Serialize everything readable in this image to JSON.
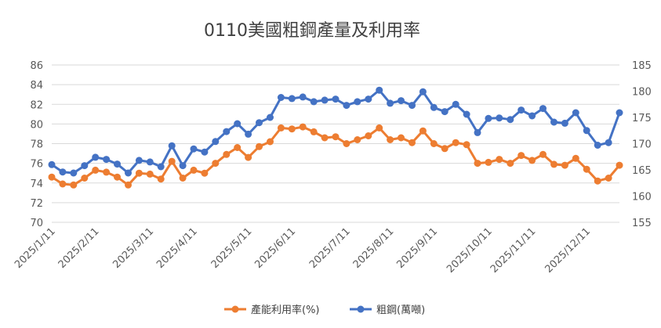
{
  "chart_data": {
    "type": "line",
    "title": "0110美國粗鋼產量及利用率",
    "x_tick_labels": [
      "2025/1/11",
      "2025/2/11",
      "2025/3/11",
      "2025/4/11",
      "2025/5/11",
      "2025/6/11",
      "2025/7/11",
      "2025/8/11",
      "2025/9/11",
      "2025/10/11",
      "2025/11/11",
      "2025/12/11"
    ],
    "left_axis": {
      "ylim": [
        70,
        86
      ],
      "ticks": [
        70,
        72,
        74,
        76,
        78,
        80,
        82,
        84,
        86
      ]
    },
    "right_axis": {
      "ylim": [
        155,
        185
      ],
      "ticks": [
        155,
        160,
        165,
        170,
        175,
        180,
        185
      ]
    },
    "grid": true,
    "legend_position": "bottom",
    "series": [
      {
        "name": "產能利用率(%)",
        "axis": "left",
        "color": "#ED7D31",
        "values": [
          74.6,
          73.9,
          73.8,
          74.5,
          75.3,
          75.1,
          74.6,
          73.8,
          75.0,
          74.9,
          74.4,
          76.2,
          74.5,
          75.3,
          75.0,
          76.0,
          76.9,
          77.6,
          76.6,
          77.7,
          78.2,
          79.6,
          79.5,
          79.7,
          79.2,
          78.6,
          78.7,
          78.0,
          78.4,
          78.8,
          79.6,
          78.4,
          78.6,
          78.1,
          79.3,
          78.0,
          77.5,
          78.1,
          77.9,
          76.0,
          76.1,
          76.4,
          76.0,
          76.8,
          76.3,
          76.9,
          75.9,
          75.8,
          76.5,
          75.4,
          74.2,
          74.5,
          75.8
        ]
      },
      {
        "name": "粗鋼(萬噸)",
        "axis": "right",
        "color": "#4472C4",
        "values": [
          166.0,
          164.6,
          164.4,
          165.8,
          167.4,
          167.0,
          166.1,
          164.4,
          166.8,
          166.5,
          165.6,
          169.6,
          165.8,
          169.0,
          168.4,
          170.4,
          172.3,
          173.8,
          171.8,
          174.0,
          175.0,
          178.8,
          178.6,
          178.9,
          178.0,
          178.3,
          178.5,
          177.3,
          178.0,
          178.5,
          180.2,
          177.7,
          178.2,
          177.3,
          179.9,
          176.9,
          176.1,
          177.5,
          175.6,
          172.1,
          174.8,
          174.9,
          174.6,
          176.4,
          175.3,
          176.7,
          174.1,
          173.9,
          175.9,
          172.5,
          169.7,
          170.2,
          175.9
        ]
      }
    ]
  }
}
